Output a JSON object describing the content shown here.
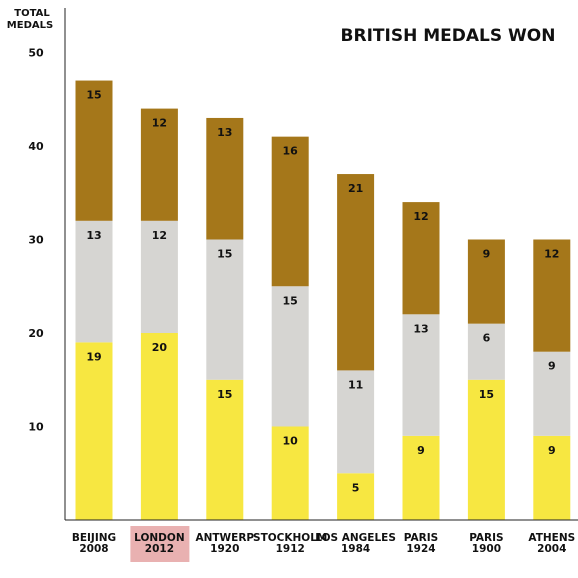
{
  "chart_data": {
    "type": "bar",
    "stacked": true,
    "title": "BRITISH MEDALS WON",
    "ylabel": [
      "TOTAL",
      "MEDALS"
    ],
    "xlabel": "",
    "ylim": [
      0,
      50
    ],
    "yticks": [
      10,
      20,
      30,
      40,
      50
    ],
    "categories": [
      [
        "BEIJING",
        "2008"
      ],
      [
        "LONDON",
        "2012"
      ],
      [
        "ANTWERP",
        "1920"
      ],
      [
        "STOCKHOLM",
        "1912"
      ],
      [
        "LOS ANGELES",
        "1984"
      ],
      [
        "PARIS",
        "1924"
      ],
      [
        "PARIS",
        "1900"
      ],
      [
        "ATHENS",
        "2004"
      ]
    ],
    "highlighted_category_index": 1,
    "series": [
      {
        "values": [
          19,
          20,
          15,
          10,
          5,
          9,
          15,
          9
        ],
        "color": "#f7e741"
      },
      {
        "values": [
          13,
          12,
          15,
          15,
          11,
          13,
          6,
          9
        ],
        "color": "#d6d5d2"
      },
      {
        "values": [
          15,
          12,
          13,
          16,
          21,
          12,
          9,
          12
        ],
        "color": "#a5771a"
      }
    ],
    "highlight_color": "#e9b1b1",
    "grid": false
  }
}
